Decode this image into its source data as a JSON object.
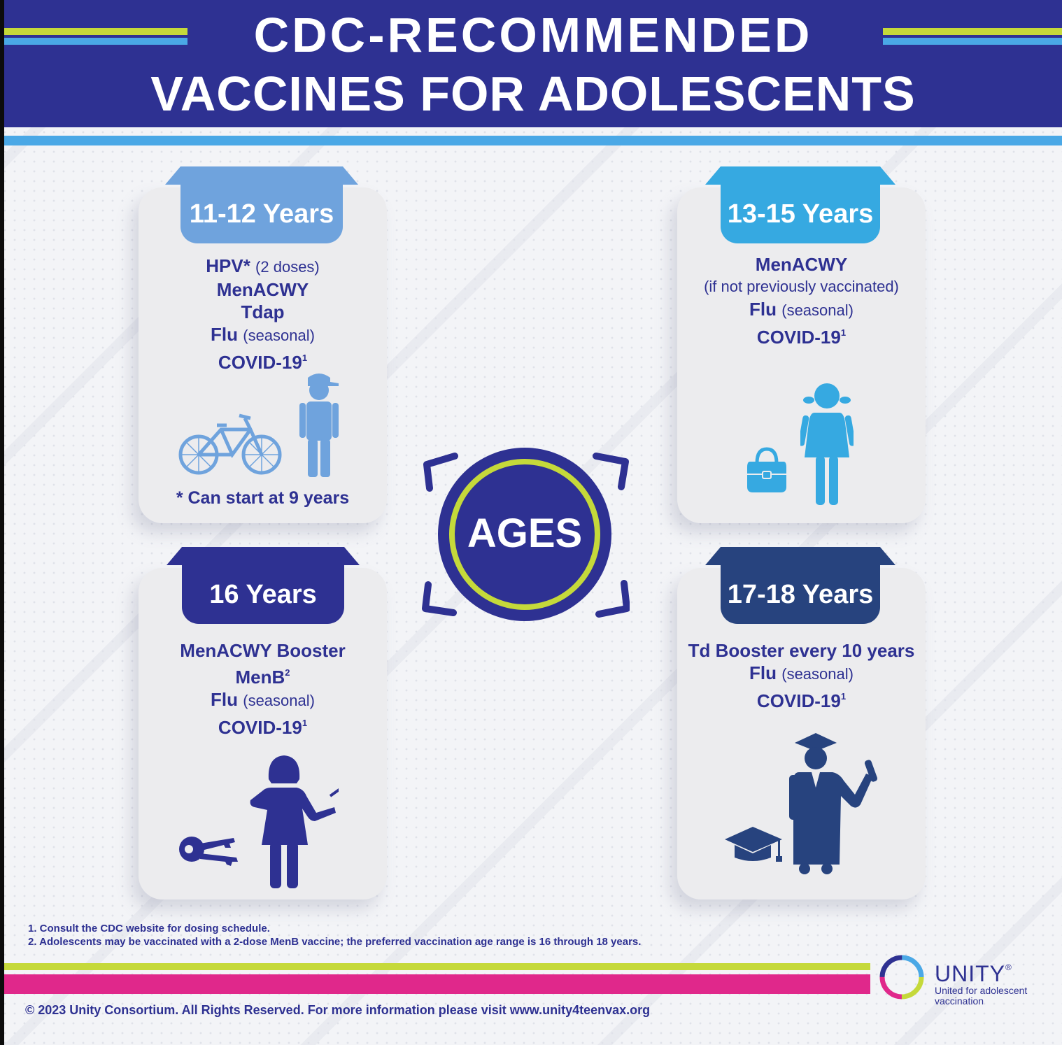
{
  "header": {
    "title_line1": "CDC-RECOMMENDED",
    "title_line2": "VACCINES FOR ADOLESCENTS"
  },
  "center": {
    "label": "AGES"
  },
  "cards": {
    "c1": {
      "age": "11-12 Years",
      "l1_bold": "HPV*",
      "l1_note": "(2 doses)",
      "l2": "MenACWY",
      "l3": "Tdap",
      "l4_bold": "Flu",
      "l4_note": "(seasonal)",
      "l5": "COVID-19",
      "l5_sup": "1",
      "note": "* Can start at 9 years",
      "icons": [
        "bicycle-icon",
        "boy-with-cap-icon"
      ]
    },
    "c2": {
      "age": "13-15 Years",
      "l1": "MenACWY",
      "l2_note": "(if not previously vaccinated)",
      "l3_bold": "Flu",
      "l3_note": "(seasonal)",
      "l4": "COVID-19",
      "l4_sup": "1",
      "icons": [
        "handbag-icon",
        "girl-with-pigtails-icon"
      ]
    },
    "c3": {
      "age": "16 Years",
      "l1": "MenACWY Booster",
      "l2": "MenB",
      "l2_sup": "2",
      "l3_bold": "Flu",
      "l3_note": "(seasonal)",
      "l4": "COVID-19",
      "l4_sup": "1",
      "icons": [
        "car-keys-icon",
        "teen-girl-icon"
      ]
    },
    "c4": {
      "age": "17-18 Years",
      "l1": "Td Booster every 10 years",
      "l2_bold": "Flu",
      "l2_note": "(seasonal)",
      "l3": "COVID-19",
      "l3_sup": "1",
      "icons": [
        "graduation-cap-icon",
        "graduate-icon"
      ]
    }
  },
  "footnotes": [
    "1. Consult the CDC website for dosing schedule.",
    "2. Adolescents may be vaccinated with a 2-dose MenB vaccine; the preferred vaccination age range is 16 through 18 years."
  ],
  "footer": {
    "copyright": "© 2023 Unity Consortium. All Rights Reserved. For more information please visit www.unity4teenvax.org",
    "logo_name": "UNITY",
    "logo_reg": "®",
    "logo_tagline": "United for adolescent vaccination"
  },
  "colors": {
    "navy": "#2e3192",
    "light_blue": "#4aa8e6",
    "lime": "#c5d93a",
    "pink": "#e0288b",
    "card_bg": "#ececee"
  }
}
